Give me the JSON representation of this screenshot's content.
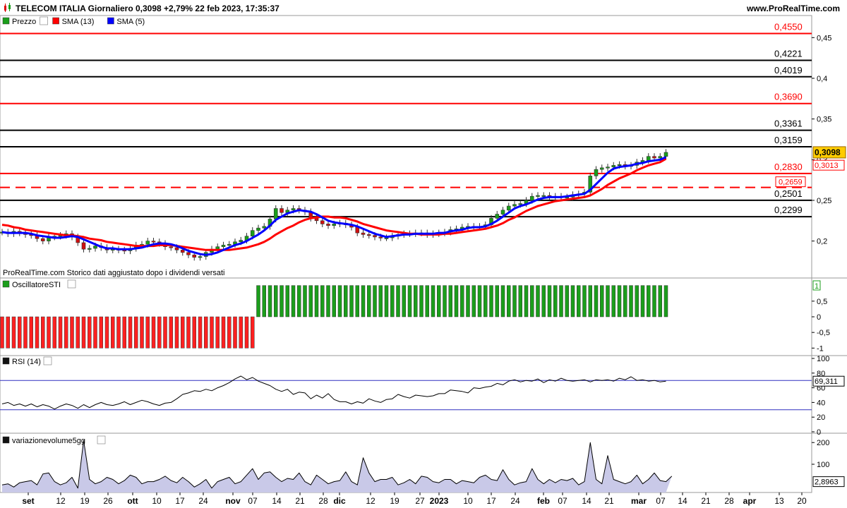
{
  "header": {
    "title": "TELECOM ITALIA Giornaliero 0,3098 +2,79% 22 feb 2023, 17:35:37",
    "site": "www.ProRealTime.com"
  },
  "price_panel": {
    "legend": [
      "Prezzo",
      "SMA (13)",
      "SMA (5)"
    ],
    "legend_colors": [
      "#1b9e1b",
      "#ff0000",
      "#0000ff"
    ],
    "footer": "ProRealTime.com  Storico dati aggiustato dopo i dividendi versati",
    "current_price": "0,3098",
    "sma13_value": "0,3013",
    "y_ticks": [
      "0,45",
      "0,4",
      "0,35",
      "0,3",
      "0,25",
      "0,2"
    ]
  },
  "sti_panel": {
    "title": "OscillatoreSTI",
    "value": "1",
    "y_ticks": [
      "0,5",
      "0",
      "-0,5",
      "-1"
    ]
  },
  "rsi_panel": {
    "title": "RSI (14)",
    "value": "69,311",
    "y_ticks": [
      "100",
      "80",
      "60",
      "40",
      "20",
      "0"
    ]
  },
  "vol_panel": {
    "title": "variazionevolume5gg",
    "value": "2,8963",
    "y_ticks": [
      "200",
      "100"
    ]
  },
  "x_axis": {
    "labels": [
      "set",
      "12",
      "19",
      "26",
      "ott",
      "10",
      "17",
      "24",
      "nov",
      "07",
      "14",
      "21",
      "28",
      "dic",
      "12",
      "19",
      "27",
      "2023",
      "10",
      "17",
      "24",
      "feb",
      "07",
      "14",
      "21",
      "mar",
      "07",
      "14",
      "21",
      "28",
      "apr",
      "13",
      "20"
    ]
  },
  "chart_data": [
    {
      "type": "line",
      "title": "TELECOM ITALIA Giornaliero",
      "ylim": [
        0.165,
        0.465
      ],
      "legend_position": "top-left",
      "horizontal_levels": [
        {
          "value": 0.455,
          "label": "0,4550",
          "color": "#ff0000",
          "style": "solid"
        },
        {
          "value": 0.4221,
          "label": "0,4221",
          "color": "#000000",
          "style": "solid"
        },
        {
          "value": 0.4019,
          "label": "0,4019",
          "color": "#000000",
          "style": "solid"
        },
        {
          "value": 0.369,
          "label": "0,3690",
          "color": "#ff0000",
          "style": "solid"
        },
        {
          "value": 0.3361,
          "label": "0,3361",
          "color": "#000000",
          "style": "solid"
        },
        {
          "value": 0.3159,
          "label": "0,3159",
          "color": "#000000",
          "style": "solid"
        },
        {
          "value": 0.283,
          "label": "0,2830",
          "color": "#ff0000",
          "style": "solid"
        },
        {
          "value": 0.2659,
          "label": "0,2659",
          "color": "#ff0000",
          "style": "dashed"
        },
        {
          "value": 0.2501,
          "label": "0,2501",
          "color": "#000000",
          "style": "solid"
        },
        {
          "value": 0.2299,
          "label": "0,2299",
          "color": "#000000",
          "style": "solid"
        }
      ],
      "series": [
        {
          "name": "Prezzo",
          "values": [
            0.211,
            0.209,
            0.212,
            0.21,
            0.208,
            0.207,
            0.203,
            0.2,
            0.205,
            0.206,
            0.207,
            0.209,
            0.205,
            0.198,
            0.19,
            0.191,
            0.194,
            0.192,
            0.189,
            0.19,
            0.189,
            0.188,
            0.191,
            0.195,
            0.196,
            0.2,
            0.199,
            0.197,
            0.193,
            0.192,
            0.189,
            0.186,
            0.183,
            0.18,
            0.181,
            0.186,
            0.19,
            0.193,
            0.195,
            0.196,
            0.199,
            0.201,
            0.206,
            0.213,
            0.216,
            0.218,
            0.227,
            0.24,
            0.235,
            0.238,
            0.24,
            0.238,
            0.236,
            0.228,
            0.225,
            0.221,
            0.219,
            0.221,
            0.222,
            0.22,
            0.217,
            0.21,
            0.208,
            0.207,
            0.205,
            0.204,
            0.204,
            0.206,
            0.208,
            0.209,
            0.209,
            0.21,
            0.21,
            0.208,
            0.209,
            0.21,
            0.211,
            0.214,
            0.215,
            0.217,
            0.218,
            0.217,
            0.218,
            0.22,
            0.228,
            0.233,
            0.238,
            0.243,
            0.245,
            0.246,
            0.25,
            0.255,
            0.256,
            0.256,
            0.255,
            0.255,
            0.254,
            0.254,
            0.257,
            0.258,
            0.26,
            0.28,
            0.288,
            0.29,
            0.291,
            0.293,
            0.294,
            0.292,
            0.293,
            0.297,
            0.299,
            0.304,
            0.302,
            0.304,
            0.309
          ]
        },
        {
          "name": "SMA (13)",
          "values": [
            0.22,
            0.219,
            0.217,
            0.216,
            0.214,
            0.213,
            0.212,
            0.211,
            0.21,
            0.209,
            0.208,
            0.207,
            0.207,
            0.206,
            0.205,
            0.203,
            0.202,
            0.201,
            0.199,
            0.198,
            0.197,
            0.196,
            0.195,
            0.194,
            0.194,
            0.194,
            0.194,
            0.195,
            0.195,
            0.195,
            0.194,
            0.193,
            0.192,
            0.191,
            0.19,
            0.189,
            0.189,
            0.189,
            0.189,
            0.189,
            0.19,
            0.191,
            0.192,
            0.194,
            0.196,
            0.199,
            0.203,
            0.208,
            0.212,
            0.216,
            0.219,
            0.223,
            0.226,
            0.228,
            0.229,
            0.23,
            0.23,
            0.229,
            0.229,
            0.228,
            0.226,
            0.224,
            0.221,
            0.219,
            0.217,
            0.215,
            0.213,
            0.212,
            0.211,
            0.21,
            0.209,
            0.209,
            0.208,
            0.208,
            0.208,
            0.208,
            0.209,
            0.209,
            0.21,
            0.211,
            0.212,
            0.213,
            0.214,
            0.215,
            0.217,
            0.219,
            0.222,
            0.226,
            0.229,
            0.233,
            0.237,
            0.24,
            0.243,
            0.245,
            0.247,
            0.249,
            0.25,
            0.251,
            0.252,
            0.253,
            0.254,
            0.256,
            0.26,
            0.264,
            0.269,
            0.273,
            0.277,
            0.28,
            0.283,
            0.287,
            0.29,
            0.293,
            0.295,
            0.297,
            0.301
          ]
        },
        {
          "name": "SMA (5)",
          "values": [
            0.211,
            0.21,
            0.21,
            0.21,
            0.21,
            0.209,
            0.207,
            0.206,
            0.205,
            0.204,
            0.204,
            0.205,
            0.206,
            0.205,
            0.202,
            0.199,
            0.196,
            0.193,
            0.191,
            0.191,
            0.19,
            0.19,
            0.19,
            0.191,
            0.192,
            0.194,
            0.196,
            0.197,
            0.197,
            0.196,
            0.194,
            0.191,
            0.188,
            0.186,
            0.184,
            0.183,
            0.184,
            0.186,
            0.189,
            0.192,
            0.195,
            0.197,
            0.2,
            0.204,
            0.208,
            0.213,
            0.219,
            0.226,
            0.23,
            0.234,
            0.236,
            0.238,
            0.237,
            0.236,
            0.233,
            0.229,
            0.225,
            0.223,
            0.222,
            0.221,
            0.22,
            0.218,
            0.215,
            0.212,
            0.209,
            0.207,
            0.205,
            0.206,
            0.207,
            0.208,
            0.208,
            0.209,
            0.209,
            0.209,
            0.209,
            0.21,
            0.21,
            0.212,
            0.213,
            0.214,
            0.216,
            0.217,
            0.217,
            0.218,
            0.221,
            0.225,
            0.23,
            0.235,
            0.24,
            0.243,
            0.245,
            0.248,
            0.251,
            0.253,
            0.254,
            0.254,
            0.254,
            0.255,
            0.256,
            0.257,
            0.258,
            0.263,
            0.27,
            0.277,
            0.284,
            0.289,
            0.291,
            0.292,
            0.293,
            0.295,
            0.296,
            0.298,
            0.299,
            0.3,
            0.303
          ]
        }
      ]
    },
    {
      "type": "bar",
      "title": "OscillatoreSTI",
      "ylim": [
        -1.15,
        1.15
      ],
      "series": [
        {
          "name": "OscillatoreSTI",
          "values": [
            -1,
            -1,
            -1,
            -1,
            -1,
            -1,
            -1,
            -1,
            -1,
            -1,
            -1,
            -1,
            -1,
            -1,
            -1,
            -1,
            -1,
            -1,
            -1,
            -1,
            -1,
            -1,
            -1,
            -1,
            -1,
            -1,
            -1,
            -1,
            -1,
            -1,
            -1,
            -1,
            -1,
            -1,
            -1,
            -1,
            -1,
            -1,
            -1,
            -1,
            -1,
            -1,
            -1,
            -1,
            1,
            1,
            1,
            1,
            1,
            1,
            1,
            1,
            1,
            1,
            1,
            1,
            1,
            1,
            1,
            1,
            1,
            1,
            1,
            1,
            1,
            1,
            1,
            1,
            1,
            1,
            1,
            1,
            1,
            1,
            1,
            1,
            1,
            1,
            1,
            1,
            1,
            1,
            1,
            1,
            1,
            1,
            1,
            1,
            1,
            1,
            1,
            1,
            1,
            1,
            1,
            1,
            1,
            1,
            1,
            1,
            1,
            1,
            1,
            1,
            1,
            1,
            1,
            1,
            1,
            1,
            1,
            1,
            1,
            1,
            1
          ]
        }
      ]
    },
    {
      "type": "line",
      "title": "RSI (14)",
      "ylim": [
        0,
        100
      ],
      "series": [
        {
          "name": "RSI (14)",
          "values": [
            38,
            40,
            36,
            38,
            35,
            38,
            34,
            37,
            35,
            31,
            35,
            38,
            36,
            32,
            37,
            33,
            37,
            40,
            37,
            36,
            38,
            41,
            37,
            40,
            43,
            41,
            38,
            36,
            39,
            40,
            45,
            51,
            53,
            56,
            55,
            58,
            56,
            60,
            63,
            67,
            72,
            76,
            71,
            74,
            69,
            66,
            63,
            58,
            55,
            58,
            51,
            54,
            53,
            45,
            50,
            46,
            52,
            44,
            41,
            41,
            38,
            41,
            39,
            45,
            42,
            40,
            44,
            45,
            51,
            48,
            46,
            50,
            49,
            48,
            49,
            52,
            52,
            57,
            56,
            55,
            53,
            60,
            59,
            61,
            62,
            66,
            64,
            69,
            71,
            68,
            70,
            69,
            72,
            67,
            71,
            69,
            73,
            70,
            69,
            70,
            71,
            68,
            71,
            70,
            71,
            69,
            73,
            71,
            75,
            70,
            71,
            69,
            70,
            68,
            69
          ]
        }
      ],
      "reference_lines": [
        70,
        30
      ]
    },
    {
      "type": "area",
      "title": "variazionevolume5gg",
      "ylim": [
        -30,
        230
      ],
      "series": [
        {
          "name": "variazionevolume5gg",
          "values": [
            5,
            10,
            -5,
            15,
            20,
            25,
            5,
            55,
            60,
            20,
            5,
            15,
            40,
            -10,
            210,
            30,
            10,
            20,
            40,
            30,
            10,
            25,
            50,
            40,
            10,
            20,
            20,
            30,
            45,
            25,
            15,
            40,
            20,
            -5,
            10,
            30,
            -10,
            20,
            30,
            40,
            10,
            20,
            50,
            80,
            30,
            60,
            65,
            40,
            20,
            35,
            30,
            60,
            20,
            5,
            50,
            30,
            10,
            20,
            25,
            65,
            20,
            5,
            130,
            60,
            20,
            30,
            30,
            40,
            5,
            15,
            30,
            10,
            45,
            40,
            20,
            15,
            30,
            30,
            10,
            25,
            20,
            15,
            40,
            50,
            30,
            25,
            75,
            30,
            5,
            15,
            20,
            80,
            30,
            10,
            30,
            15,
            30,
            25,
            35,
            5,
            20,
            200,
            30,
            10,
            140,
            30,
            20,
            10,
            20,
            50,
            10,
            30,
            60,
            25,
            20,
            45
          ]
        }
      ]
    }
  ]
}
